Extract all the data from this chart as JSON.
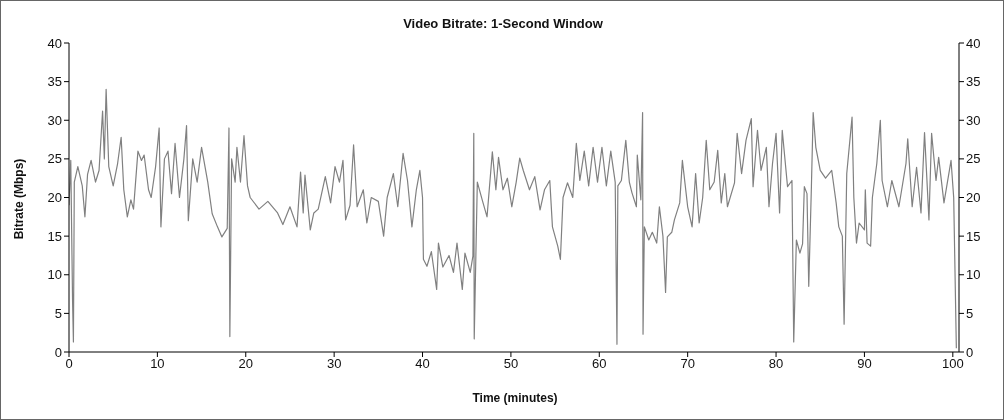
{
  "chart_data": {
    "type": "line",
    "title": "Video Bitrate: 1-Second Window",
    "xlabel": "Time (minutes)",
    "ylabel": "Bitrate (Mbps)",
    "x": [
      0,
      0.2,
      0.4,
      0.5,
      0.6,
      1.0,
      1.5,
      1.8,
      2.1,
      2.5,
      3.0,
      3.4,
      3.8,
      4.0,
      4.2,
      4.5,
      5.0,
      5.5,
      5.9,
      6.2,
      6.6,
      7.0,
      7.3,
      7.8,
      8.2,
      8.5,
      9.0,
      9.3,
      9.8,
      10.2,
      10.4,
      10.8,
      11.2,
      11.6,
      12.0,
      12.5,
      13.0,
      13.3,
      13.5,
      14.0,
      14.5,
      15.0,
      15.7,
      16.2,
      16.8,
      17.3,
      17.9,
      18.1,
      18.2,
      18.4,
      18.8,
      19.0,
      19.4,
      19.8,
      20.2,
      20.5,
      21.5,
      22.5,
      23.6,
      24.2,
      25.0,
      25.8,
      26.2,
      26.5,
      26.7,
      27.3,
      27.7,
      28.2,
      29.0,
      29.6,
      30.1,
      30.6,
      31.0,
      31.3,
      31.8,
      32.2,
      32.6,
      33.3,
      33.7,
      34.2,
      35.0,
      35.6,
      36.0,
      36.7,
      37.2,
      37.8,
      38.3,
      38.8,
      39.3,
      39.7,
      40.0,
      40.1,
      40.5,
      41.0,
      41.6,
      41.8,
      42.3,
      43.0,
      43.5,
      43.9,
      44.5,
      44.8,
      45.4,
      45.7,
      45.8,
      45.85,
      46.2,
      46.8,
      47.3,
      47.9,
      48.3,
      48.6,
      49.1,
      49.6,
      50.1,
      50.6,
      51.0,
      51.4,
      52.1,
      52.7,
      53.3,
      53.8,
      54.4,
      54.7,
      55.3,
      55.6,
      55.9,
      56.4,
      57.0,
      57.4,
      57.8,
      58.3,
      58.8,
      59.3,
      59.8,
      60.3,
      60.8,
      61.3,
      61.8,
      62.0,
      62.1,
      62.5,
      63.0,
      63.4,
      63.7,
      64.2,
      64.3,
      64.7,
      64.9,
      64.95,
      65.1,
      65.6,
      66.0,
      66.5,
      66.8,
      67.2,
      67.5,
      67.7,
      68.2,
      68.5,
      69.1,
      69.4,
      70.0,
      70.5,
      70.9,
      71.3,
      71.7,
      72.1,
      72.5,
      73.0,
      73.4,
      73.8,
      74.2,
      74.5,
      75.3,
      75.6,
      76.1,
      76.6,
      77.2,
      77.4,
      77.9,
      78.3,
      78.9,
      79.2,
      79.6,
      80.0,
      80.4,
      80.7,
      81.3,
      81.8,
      82.0,
      82.3,
      82.7,
      83.0,
      83.2,
      83.5,
      83.7,
      84.0,
      84.2,
      84.5,
      85.0,
      85.6,
      86.3,
      86.8,
      87.1,
      87.5,
      87.7,
      88.0,
      88.6,
      88.8,
      89.1,
      89.4,
      90.0,
      90.1,
      90.3,
      90.7,
      90.9,
      91.4,
      91.8,
      92.0,
      92.6,
      93.1,
      93.9,
      94.7,
      94.9,
      95.4,
      95.9,
      96.4,
      96.8,
      97.3,
      97.6,
      98.1,
      98.4,
      99.0,
      99.8,
      100.1,
      100.4
    ],
    "series": [
      {
        "color": "#808080",
        "values": [
          19,
          24.8,
          6.8,
          1.3,
          22,
          24,
          21.5,
          17.5,
          23,
          24.8,
          22,
          23.5,
          31.2,
          25,
          34,
          24,
          21.5,
          24.4,
          27.8,
          21,
          17.5,
          19.7,
          18.5,
          26,
          24.8,
          25.5,
          21,
          20,
          24,
          29,
          16.2,
          25,
          26,
          20.5,
          27,
          20,
          25,
          29.3,
          17,
          25,
          22,
          26.5,
          22,
          17.9,
          16.2,
          14.9,
          16,
          29,
          2,
          25,
          22,
          26.5,
          22,
          28,
          21.5,
          20,
          18.5,
          19.5,
          18,
          16.5,
          18.8,
          16.2,
          23.3,
          18,
          22.9,
          15.8,
          18,
          18.5,
          22.7,
          19.3,
          24,
          22,
          24.8,
          17.1,
          19,
          26.8,
          18.8,
          21,
          16.7,
          20,
          19.5,
          15,
          20,
          23.1,
          18.8,
          25.7,
          22.2,
          16.2,
          21,
          23.5,
          20,
          12,
          11.1,
          13,
          8.1,
          14.1,
          11,
          12.5,
          10.3,
          14.1,
          8.1,
          12.8,
          10.3,
          12.4,
          28.3,
          1.7,
          22,
          19.5,
          17.5,
          25.9,
          21,
          25.2,
          21,
          22.5,
          18.8,
          22,
          25.1,
          23.5,
          21,
          22.7,
          18.4,
          21,
          22.2,
          16.2,
          13.7,
          12,
          20,
          21.9,
          20,
          27,
          22.2,
          26,
          21.5,
          26.5,
          22,
          26.5,
          21.5,
          26,
          22,
          1,
          21.5,
          22.2,
          27.4,
          22,
          20.6,
          18.8,
          25.5,
          19.7,
          31,
          2.3,
          16.2,
          14.5,
          15.5,
          14.1,
          18.8,
          15,
          7.7,
          14.9,
          15.5,
          17.1,
          19.3,
          24.8,
          18.8,
          16.2,
          23.1,
          16.7,
          20,
          27.4,
          21,
          22,
          26.1,
          19.3,
          23.1,
          18.8,
          21.9,
          28.3,
          23.1,
          27.4,
          30.2,
          21.4,
          28.7,
          23.5,
          26.5,
          18.8,
          24.4,
          28.3,
          18,
          28.7,
          21.4,
          22.2,
          1.3,
          14.5,
          12.8,
          14,
          21.4,
          20.5,
          8.5,
          21.4,
          31,
          26.5,
          23.5,
          22.5,
          23.5,
          19.3,
          16.2,
          15,
          3.6,
          23.1,
          30.4,
          20,
          14.1,
          16.7,
          15.8,
          21,
          14.1,
          13.7,
          20,
          24.4,
          30,
          22.2,
          18.8,
          22.2,
          18.8,
          24.4,
          27.6,
          18.8,
          23.9,
          18,
          28.4,
          17.1,
          28.3,
          22.2,
          25.2,
          19.3,
          24.8,
          20,
          0.5
        ]
      }
    ],
    "xlim": [
      0,
      100.7
    ],
    "xticks": [
      0,
      10,
      20,
      30,
      40,
      50,
      60,
      70,
      80,
      90,
      100
    ],
    "ylim": [
      0,
      40
    ],
    "yticks": [
      0,
      5,
      10,
      15,
      20,
      25,
      30,
      35,
      40
    ],
    "y2lim": [
      0,
      40
    ],
    "y2ticks": [
      0,
      5,
      10,
      15,
      20,
      25,
      30,
      35,
      40
    ]
  }
}
